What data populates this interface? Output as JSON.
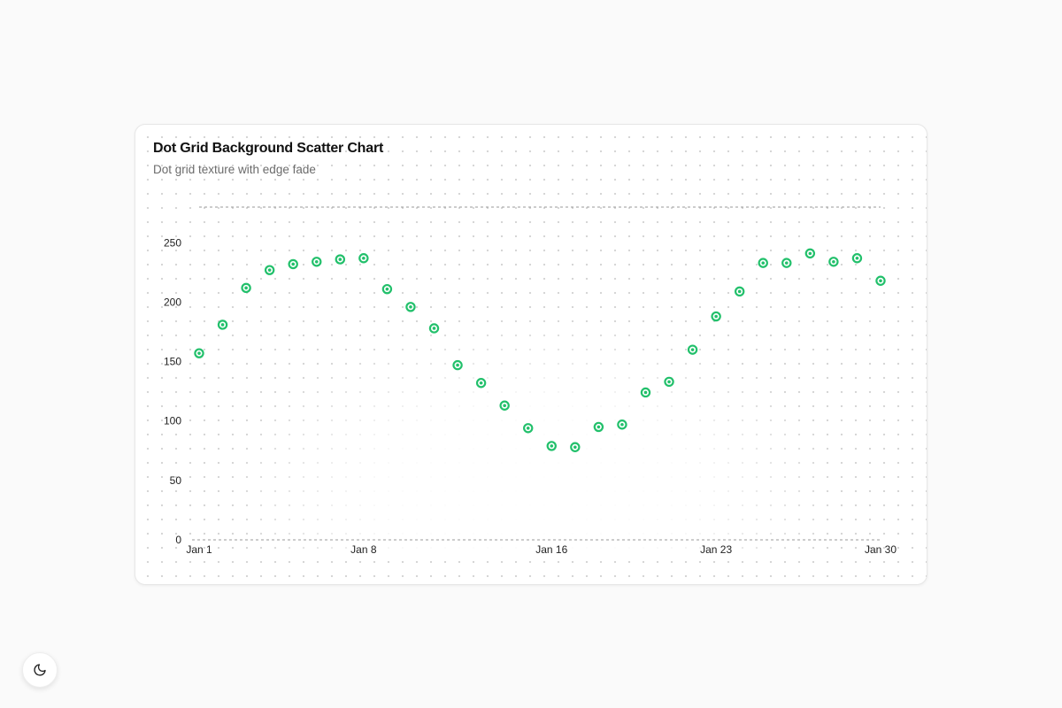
{
  "header": {
    "title": "Dot Grid Background Scatter Chart",
    "subtitle": "Dot grid texture with edge fade"
  },
  "theme_toggle": {
    "icon": "moon-icon"
  },
  "colors": {
    "point": "#22c06b",
    "axis_line": "#9a9a9a",
    "tick_text": "#222222",
    "dot_grid": "#d4d4d4"
  },
  "chart_data": {
    "type": "scatter",
    "title": "Dot Grid Background Scatter Chart",
    "subtitle": "Dot grid texture with edge fade",
    "xlabel": "",
    "ylabel": "",
    "x": [
      "Jan 1",
      "Jan 2",
      "Jan 3",
      "Jan 4",
      "Jan 5",
      "Jan 6",
      "Jan 7",
      "Jan 8",
      "Jan 9",
      "Jan 10",
      "Jan 11",
      "Jan 12",
      "Jan 13",
      "Jan 14",
      "Jan 15",
      "Jan 16",
      "Jan 17",
      "Jan 18",
      "Jan 19",
      "Jan 20",
      "Jan 21",
      "Jan 22",
      "Jan 23",
      "Jan 24",
      "Jan 25",
      "Jan 26",
      "Jan 27",
      "Jan 28",
      "Jan 29",
      "Jan 30"
    ],
    "series": [
      {
        "values": [
          157,
          181,
          212,
          227,
          232,
          234,
          236,
          237,
          211,
          196,
          178,
          147,
          132,
          113,
          94,
          79,
          78,
          95,
          97,
          124,
          133,
          160,
          188,
          209,
          233,
          233,
          241,
          234,
          237,
          218
        ]
      }
    ],
    "x_ticks": [
      "Jan 1",
      "Jan 8",
      "Jan 16",
      "Jan 23",
      "Jan 30"
    ],
    "y_ticks": [
      0,
      50,
      100,
      150,
      200,
      250
    ],
    "ylim": [
      0,
      280
    ],
    "grid": false,
    "reference_lines": [
      "top",
      "baseline"
    ],
    "legend": "none"
  }
}
